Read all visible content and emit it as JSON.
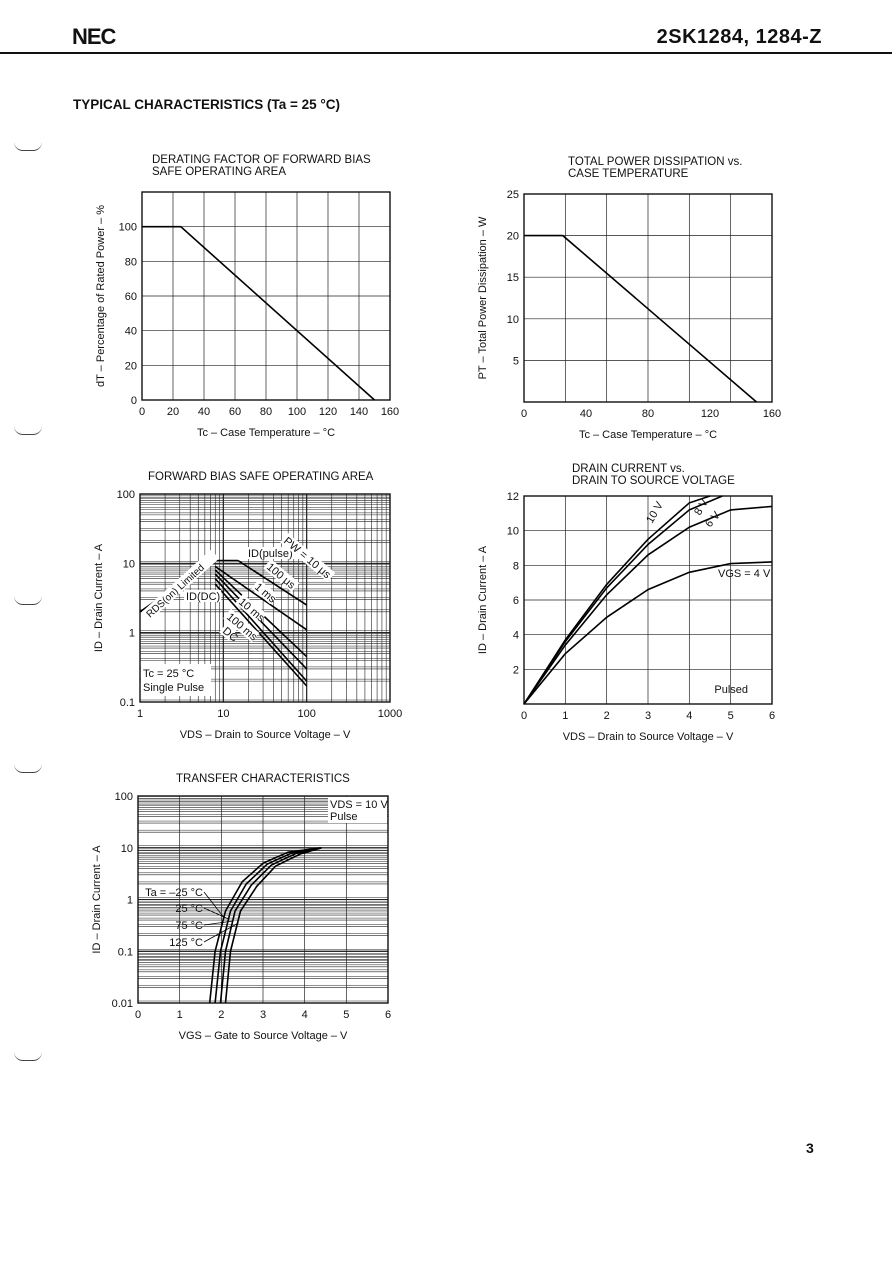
{
  "header": {
    "logo": "NEC",
    "part_number": "2SK1284,  1284-Z"
  },
  "section_title": "TYPICAL CHARACTERISTICS (Ta = 25 °C)",
  "page_number": "3",
  "chart_data": [
    {
      "id": "derating",
      "type": "line",
      "title": "DERATING FACTOR OF FORWARD BIAS\nSAFE OPERATING AREA",
      "xlabel": "Tc – Case Temperature – °C",
      "ylabel": "dT – Percentage of Rated Power – %",
      "xlim": [
        0,
        160
      ],
      "ylim": [
        0,
        120
      ],
      "xticks": [
        "0",
        "20",
        "40",
        "60",
        "80",
        "100",
        "120",
        "140",
        "160"
      ],
      "yticks": [
        "0",
        "20",
        "40",
        "60",
        "80",
        "100"
      ],
      "grid": true,
      "series": [
        {
          "x": [
            0,
            25,
            150
          ],
          "y": [
            100,
            100,
            0
          ]
        }
      ]
    },
    {
      "id": "power",
      "type": "line",
      "title": "TOTAL POWER DISSIPATION vs.\nCASE TEMPERATURE",
      "xlabel": "Tc – Case Temperature – °C",
      "ylabel": "PT – Total Power Dissipation – W",
      "xlim": [
        0,
        160
      ],
      "ylim": [
        0,
        25
      ],
      "xticks": [
        "0",
        "40",
        "80",
        "120",
        "160"
      ],
      "yticks": [
        "5",
        "10",
        "15",
        "20",
        "25"
      ],
      "grid": true,
      "series": [
        {
          "x": [
            0,
            25,
            150
          ],
          "y": [
            20,
            20,
            0
          ]
        }
      ]
    },
    {
      "id": "soa",
      "type": "line",
      "title": "FORWARD BIAS SAFE OPERATING AREA",
      "xlabel": "VDS – Drain to Source Voltage – V",
      "ylabel": "ID – Drain Current – A",
      "xscale": "log",
      "yscale": "log",
      "xlim": [
        1,
        1000
      ],
      "ylim": [
        0.1,
        100
      ],
      "xticks": [
        "1",
        "10",
        "100",
        "1000"
      ],
      "yticks": [
        "0.1",
        "1",
        "10",
        "100"
      ],
      "grid": true,
      "annotations": [
        "RDS(on) Limited",
        "ID(pulse)",
        "ID(DC)",
        "PW = 10 μs",
        "100 μs",
        "1 ms",
        "10 ms",
        "100 ms",
        "DC",
        "Tc = 25 °C",
        "Single Pulse"
      ],
      "series": [
        {
          "x": [
            1,
            7.5
          ],
          "y": [
            2,
            11
          ]
        },
        {
          "x": [
            7.5,
            15
          ],
          "y": [
            11,
            11
          ]
        },
        {
          "x": [
            15,
            100
          ],
          "y": [
            11,
            2.5
          ]
        },
        {
          "x": [
            8,
            100
          ],
          "y": [
            9,
            1.1
          ]
        },
        {
          "x": [
            8,
            100
          ],
          "y": [
            8,
            0.45
          ]
        },
        {
          "x": [
            8,
            100
          ],
          "y": [
            7,
            0.3
          ]
        },
        {
          "x": [
            8,
            100
          ],
          "y": [
            6,
            0.2
          ]
        },
        {
          "x": [
            8,
            100
          ],
          "y": [
            5,
            0.17
          ]
        }
      ]
    },
    {
      "id": "output",
      "type": "line",
      "title": "DRAIN CURRENT vs.\nDRAIN TO SOURCE VOLTAGE",
      "xlabel": "VDS – Drain to Source Voltage – V",
      "ylabel": "ID – Drain Current – A",
      "xlim": [
        0,
        6
      ],
      "ylim": [
        0,
        12
      ],
      "xticks": [
        "0",
        "1",
        "2",
        "3",
        "4",
        "5",
        "6"
      ],
      "yticks": [
        "2",
        "4",
        "6",
        "8",
        "10",
        "12"
      ],
      "grid": true,
      "annotation": "Pulsed",
      "series": [
        {
          "name": "10 V",
          "x": [
            0,
            1,
            2,
            3,
            4,
            4.5
          ],
          "y": [
            0,
            3.7,
            6.9,
            9.5,
            11.6,
            12
          ]
        },
        {
          "name": "8 V",
          "x": [
            0,
            1,
            2,
            3,
            4,
            4.8
          ],
          "y": [
            0,
            3.6,
            6.7,
            9.2,
            11.2,
            12
          ]
        },
        {
          "name": "6 V",
          "x": [
            0,
            1,
            2,
            3,
            4,
            5,
            6
          ],
          "y": [
            0,
            3.4,
            6.3,
            8.6,
            10.2,
            11.2,
            11.4
          ]
        },
        {
          "name": "VGS = 4 V",
          "x": [
            0,
            1,
            2,
            3,
            4,
            5,
            6
          ],
          "y": [
            0,
            2.9,
            5,
            6.6,
            7.6,
            8.1,
            8.2
          ]
        }
      ]
    },
    {
      "id": "transfer",
      "type": "line",
      "title": "TRANSFER CHARACTERISTICS",
      "xlabel": "VGS – Gate to Source Voltage – V",
      "ylabel": "ID – Drain Current – A",
      "yscale": "log",
      "xlim": [
        0,
        6
      ],
      "ylim": [
        0.01,
        100
      ],
      "xticks": [
        "0",
        "1",
        "2",
        "3",
        "4",
        "5",
        "6"
      ],
      "yticks": [
        "0.01",
        "0.1",
        "1",
        "10",
        "100"
      ],
      "grid": true,
      "annotation": "VDS = 10 V\nPulse",
      "series": [
        {
          "name": "Ta = –25 °C",
          "x": [
            1.72,
            1.85,
            2.1,
            2.5,
            3,
            3.6,
            4.4
          ],
          "y": [
            0.01,
            0.1,
            0.6,
            2.2,
            5,
            8.2,
            10
          ]
        },
        {
          "name": "25 °C",
          "x": [
            1.85,
            1.98,
            2.22,
            2.6,
            3.1,
            3.7,
            4.4
          ],
          "y": [
            0.01,
            0.1,
            0.6,
            2,
            4.8,
            8,
            10
          ]
        },
        {
          "name": "75 °C",
          "x": [
            1.98,
            2.1,
            2.33,
            2.72,
            3.2,
            3.8,
            4.4
          ],
          "y": [
            0.01,
            0.1,
            0.6,
            1.9,
            4.6,
            7.8,
            10
          ]
        },
        {
          "name": "125 °C",
          "x": [
            2.1,
            2.22,
            2.46,
            2.85,
            3.3,
            3.9,
            4.4
          ],
          "y": [
            0.01,
            0.1,
            0.6,
            1.8,
            4.4,
            7.6,
            10
          ]
        }
      ]
    }
  ]
}
